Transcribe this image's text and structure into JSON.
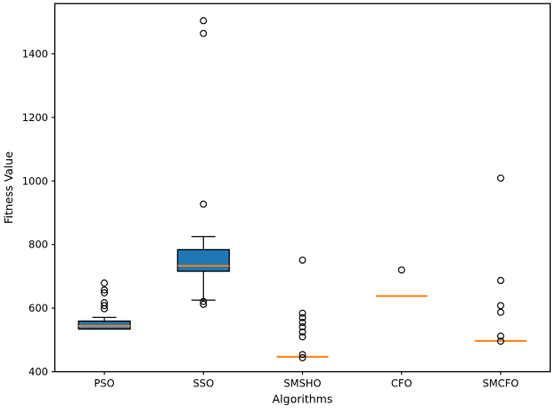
{
  "figure": {
    "background": "#ffffff"
  },
  "chart_data": {
    "type": "boxplot",
    "title": "",
    "xlabel": "Algorithms",
    "ylabel": "Fitness Value",
    "categories": [
      "PSO",
      "SSO",
      "SMSHO",
      "CFO",
      "SMCFO"
    ],
    "yticks": [
      400,
      600,
      800,
      1000,
      1200,
      1400
    ],
    "ylim": [
      400,
      1558
    ],
    "grid": false,
    "legend": null,
    "colors": {
      "box_fill": "#1f77b4",
      "box_edge": "#000000",
      "median": "#ff7f0e",
      "whisker": "#000000",
      "flier_edge": "#000000",
      "frame": "#000000"
    },
    "series": [
      {
        "name": "PSO",
        "whislo": 534,
        "q1": 534,
        "median": 544,
        "q3": 559,
        "whishi": 571,
        "fliers": [
          598,
          608,
          617,
          648,
          657,
          679
        ]
      },
      {
        "name": "SSO",
        "whislo": 625,
        "q1": 716,
        "median": 733,
        "q3": 784,
        "whishi": 825,
        "fliers": [
          612,
          621,
          927,
          1464,
          1504
        ]
      },
      {
        "name": "SMSHO",
        "whislo": 447,
        "q1": 447,
        "median": 447,
        "q3": 447,
        "whishi": 447,
        "fliers": [
          444,
          454,
          510,
          525,
          541,
          555,
          570,
          584,
          751
        ]
      },
      {
        "name": "CFO",
        "whislo": 638,
        "q1": 638,
        "median": 638,
        "q3": 638,
        "whishi": 638,
        "fliers": [
          720
        ]
      },
      {
        "name": "SMCFO",
        "whislo": 497,
        "q1": 497,
        "median": 497,
        "q3": 497,
        "whishi": 497,
        "fliers": [
          496,
          512,
          587,
          608,
          687,
          1009
        ]
      }
    ]
  }
}
